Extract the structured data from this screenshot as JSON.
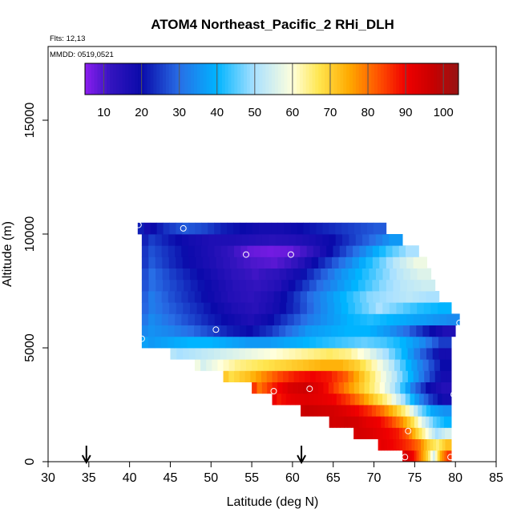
{
  "chart_data": {
    "type": "heatmap",
    "title": "ATOM4 Northeast_Pacific_2 RHi_DLH",
    "annotations": [
      "Flts: 12,13",
      "MMDD: 0519,0521"
    ],
    "xlabel": "Latitude (deg N)",
    "ylabel": "Altitude (m)",
    "xlim": [
      30,
      85
    ],
    "ylim": [
      0,
      17500
    ],
    "x_ticks": [
      30,
      35,
      40,
      45,
      50,
      55,
      60,
      65,
      70,
      75,
      80,
      85
    ],
    "y_ticks": [
      0,
      5000,
      10000,
      15000
    ],
    "grid": false,
    "colorbar": {
      "placement": "top-inside",
      "range": [
        5,
        104
      ],
      "ticks": [
        10,
        20,
        30,
        40,
        50,
        60,
        70,
        80,
        90,
        100
      ]
    },
    "markers": {
      "type": "arrow-down",
      "x": [
        34.7,
        61.1
      ]
    },
    "profiles": [
      {
        "x": 41.1,
        "y": 10400
      },
      {
        "x": 46.6,
        "y": 10250
      },
      {
        "x": 54.3,
        "y": 9100
      },
      {
        "x": 59.8,
        "y": 9100
      },
      {
        "x": 50.6,
        "y": 5800
      },
      {
        "x": 41.5,
        "y": 5400
      },
      {
        "x": 70.0,
        "y": 10700
      },
      {
        "x": 80.5,
        "y": 6100
      },
      {
        "x": 57.7,
        "y": 3100
      },
      {
        "x": 62.1,
        "y": 3200
      },
      {
        "x": 79.8,
        "y": 2950
      },
      {
        "x": 74.2,
        "y": 1350
      },
      {
        "x": 73.8,
        "y": 200
      },
      {
        "x": 79.4,
        "y": 200
      }
    ],
    "rows": [
      {
        "y0": 0,
        "y1": 500,
        "x0": 73.5,
        "x1": 79.5,
        "values": [
          95,
          90,
          80,
          70,
          55,
          75,
          85
        ]
      },
      {
        "y0": 500,
        "y1": 1000,
        "x0": 70.5,
        "x1": 79.5,
        "values": [
          92,
          90,
          88,
          85,
          80,
          70,
          65,
          72
        ]
      },
      {
        "y0": 1000,
        "y1": 1500,
        "x0": 67.5,
        "x1": 79.5,
        "values": [
          95,
          94,
          92,
          90,
          88,
          82,
          70,
          60,
          50,
          55
        ]
      },
      {
        "y0": 1500,
        "y1": 2000,
        "x0": 64.5,
        "x1": 79.5,
        "values": [
          95,
          96,
          95,
          92,
          90,
          85,
          78,
          68,
          55,
          45,
          40
        ]
      },
      {
        "y0": 2000,
        "y1": 2500,
        "x0": 61.0,
        "x1": 79.5,
        "values": [
          97,
          96,
          95,
          93,
          90,
          86,
          80,
          72,
          62,
          48,
          38,
          35
        ]
      },
      {
        "y0": 2500,
        "y1": 3000,
        "x0": 57.5,
        "x1": 79.5,
        "values": [
          88,
          92,
          93,
          92,
          90,
          85,
          78,
          70,
          62,
          50,
          36,
          25,
          18
        ]
      },
      {
        "y0": 3000,
        "y1": 3500,
        "x0": 55.0,
        "x1": 79.5,
        "values": [
          80,
          88,
          94,
          96,
          92,
          84,
          76,
          68,
          60,
          48,
          32,
          20,
          15
        ]
      },
      {
        "y0": 3500,
        "y1": 4000,
        "x0": 51.5,
        "x1": 79.5,
        "values": [
          68,
          72,
          78,
          84,
          88,
          90,
          88,
          82,
          72,
          62,
          52,
          40,
          28,
          18
        ]
      },
      {
        "y0": 4000,
        "y1": 4500,
        "x0": 48.0,
        "x1": 79.5,
        "values": [
          55,
          60,
          64,
          66,
          68,
          70,
          72,
          74,
          74,
          70,
          62,
          52,
          40,
          30,
          20
        ]
      },
      {
        "y0": 4500,
        "y1": 5000,
        "x0": 45.0,
        "x1": 79.5,
        "values": [
          50,
          52,
          54,
          56,
          58,
          60,
          62,
          64,
          66,
          64,
          58,
          50,
          40,
          28,
          18
        ]
      },
      {
        "y0": 5000,
        "y1": 5500,
        "x0": 41.5,
        "x1": 79.5,
        "values": [
          36,
          38,
          40,
          40,
          38,
          36,
          36,
          38,
          40,
          42,
          44,
          46,
          44,
          40,
          34,
          25
        ]
      },
      {
        "y0": 5500,
        "y1": 6000,
        "x0": 41.5,
        "x1": 80.0,
        "values": [
          35,
          33,
          30,
          26,
          22,
          20,
          24,
          30,
          36,
          38,
          40,
          40,
          36,
          30,
          22,
          16
        ]
      },
      {
        "y0": 6000,
        "y1": 6500,
        "x0": 41.5,
        "x1": 80.5,
        "values": [
          34,
          30,
          26,
          22,
          19,
          16,
          20,
          26,
          32,
          36,
          40,
          42,
          40,
          38,
          36,
          34
        ]
      },
      {
        "y0": 6500,
        "y1": 7000,
        "x0": 41.5,
        "x1": 79.5,
        "values": [
          32,
          28,
          24,
          20,
          16,
          14,
          18,
          24,
          32,
          38,
          44,
          50,
          46,
          42,
          40
        ]
      },
      {
        "y0": 7000,
        "y1": 7500,
        "x0": 41.5,
        "x1": 78.0,
        "values": [
          32,
          27,
          23,
          19,
          15,
          13,
          16,
          22,
          30,
          36,
          42,
          48,
          50,
          52,
          50
        ]
      },
      {
        "y0": 7500,
        "y1": 8000,
        "x0": 41.5,
        "x1": 77.5,
        "values": [
          30,
          26,
          22,
          18,
          14,
          12,
          15,
          22,
          30,
          36,
          42,
          48,
          52,
          54
        ]
      },
      {
        "y0": 8000,
        "y1": 8500,
        "x0": 41.5,
        "x1": 77.0,
        "values": [
          30,
          25,
          21,
          17,
          13,
          11,
          13,
          18,
          26,
          34,
          40,
          46,
          52,
          56
        ]
      },
      {
        "y0": 8500,
        "y1": 9000,
        "x0": 41.5,
        "x1": 76.5,
        "values": [
          28,
          23,
          19,
          16,
          12,
          10,
          9,
          12,
          20,
          28,
          36,
          44,
          52,
          58
        ]
      },
      {
        "y0": 9000,
        "y1": 9500,
        "x0": 41.5,
        "x1": 75.5,
        "values": [
          27,
          23,
          19,
          16,
          12,
          8,
          7,
          8,
          12,
          20,
          28,
          36,
          44,
          50
        ]
      },
      {
        "y0": 9500,
        "y1": 10000,
        "x0": 41.5,
        "x1": 73.5,
        "values": [
          25,
          21,
          18,
          16,
          16,
          15,
          14,
          15,
          17,
          20,
          25,
          30,
          36
        ]
      },
      {
        "y0": 10000,
        "y1": 10500,
        "x0": 41.0,
        "x1": 71.5,
        "values": [
          18,
          24,
          28,
          26,
          22,
          20,
          18,
          18,
          20,
          22,
          24,
          26,
          28
        ]
      }
    ]
  }
}
